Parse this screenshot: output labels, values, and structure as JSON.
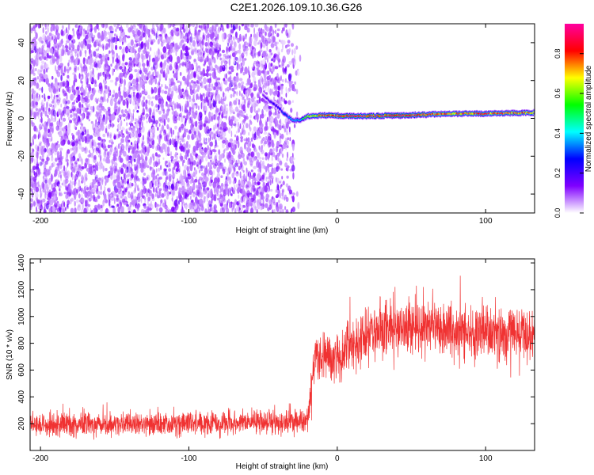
{
  "title": "C2E1.2026.109.10.36.G26",
  "chart_data": [
    {
      "type": "heatmap",
      "xlabel": "Height of straight line (km)",
      "ylabel": "Frequency (Hz)",
      "xlim": [
        -207,
        133
      ],
      "ylim": [
        -50,
        50
      ],
      "xticks": [
        -200,
        -100,
        0,
        100
      ],
      "yticks": [
        -40,
        -20,
        0,
        20,
        40
      ],
      "colorbar": {
        "label": "Normalized spectral amplitude",
        "range": [
          0,
          0.95
        ],
        "ticks": [
          0.0,
          0.2,
          0.4,
          0.6,
          0.8
        ],
        "tick_labels": [
          "0.0",
          "0.2",
          "0.4",
          "0.6",
          "0.8"
        ],
        "colors": [
          "#ffffff",
          "#8000ff",
          "#0000ff",
          "#00ffff",
          "#00ff00",
          "#ffff00",
          "#ff0000",
          "#ff00a0"
        ]
      },
      "noise_region": {
        "x_range": [
          -207,
          -30
        ],
        "y_range": [
          -50,
          50
        ],
        "typical_amplitude": 0.12
      },
      "signal_track": {
        "x": [
          -50,
          -40,
          -35,
          -30,
          -25,
          -20,
          -10,
          0,
          10,
          20,
          40,
          60,
          80,
          100,
          120,
          133
        ],
        "y": [
          12,
          6,
          2,
          -1,
          -1,
          1,
          1.5,
          1.5,
          1.2,
          1.2,
          1.5,
          2,
          2.5,
          2.5,
          2.8,
          3
        ],
        "amplitude": [
          0.15,
          0.25,
          0.3,
          0.35,
          0.4,
          0.6,
          0.75,
          0.8,
          0.85,
          0.85,
          0.9,
          0.8,
          0.75,
          0.8,
          0.75,
          0.7
        ]
      }
    },
    {
      "type": "line",
      "xlabel": "Height of straight line (km)",
      "ylabel": "SNR (10 * v/v)",
      "xlim": [
        -207,
        133
      ],
      "ylim": [
        0,
        1430
      ],
      "xticks": [
        -200,
        -100,
        0,
        100
      ],
      "yticks": [
        200,
        400,
        600,
        800,
        1000,
        1200,
        1400
      ],
      "color": "#f03232",
      "series_envelope": {
        "x": [
          -207,
          -180,
          -150,
          -120,
          -100,
          -80,
          -60,
          -40,
          -20,
          -15,
          0,
          10,
          20,
          30,
          40,
          60,
          80,
          100,
          120,
          133
        ],
        "mean": [
          190,
          195,
          200,
          200,
          205,
          200,
          210,
          210,
          215,
          680,
          700,
          780,
          860,
          900,
          920,
          920,
          900,
          880,
          870,
          870
        ],
        "spread": [
          100,
          100,
          100,
          100,
          100,
          100,
          100,
          100,
          120,
          220,
          220,
          230,
          230,
          230,
          240,
          240,
          230,
          230,
          230,
          230
        ]
      }
    }
  ]
}
